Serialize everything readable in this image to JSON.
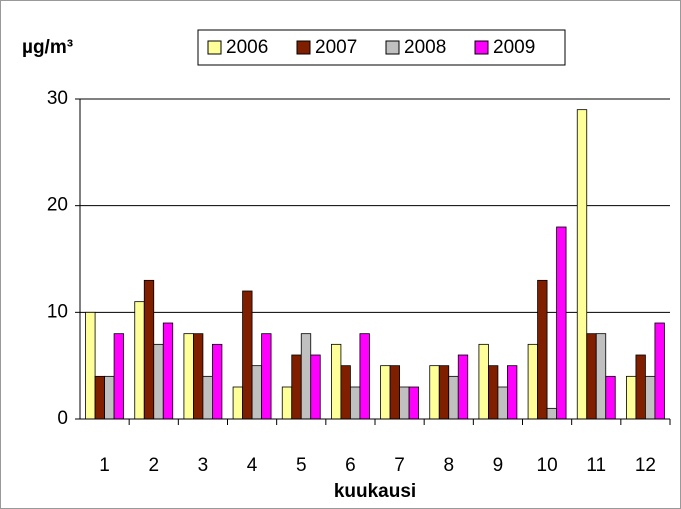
{
  "chart_data": {
    "type": "bar",
    "y_label": "µg/m³",
    "x_label": "kuukausi",
    "categories": [
      "1",
      "2",
      "3",
      "4",
      "5",
      "6",
      "7",
      "8",
      "9",
      "10",
      "11",
      "12"
    ],
    "series": [
      {
        "name": "2006",
        "color": "#ffff99",
        "values": [
          10,
          11,
          8,
          3,
          3,
          7,
          5,
          5,
          7,
          7,
          29,
          4
        ]
      },
      {
        "name": "2007",
        "color": "#7f1f00",
        "values": [
          4,
          13,
          8,
          12,
          6,
          5,
          5,
          5,
          5,
          13,
          8,
          6
        ]
      },
      {
        "name": "2008",
        "color": "#c0c0c0",
        "values": [
          4,
          7,
          4,
          5,
          8,
          3,
          3,
          4,
          3,
          1,
          8,
          4
        ]
      },
      {
        "name": "2009",
        "color": "#ff00ff",
        "values": [
          8,
          9,
          7,
          8,
          6,
          8,
          3,
          6,
          5,
          18,
          4,
          9
        ]
      }
    ],
    "ylim": [
      0,
      30
    ],
    "yticks": [
      0,
      10,
      20,
      30
    ],
    "grid": true,
    "legend": "top"
  }
}
